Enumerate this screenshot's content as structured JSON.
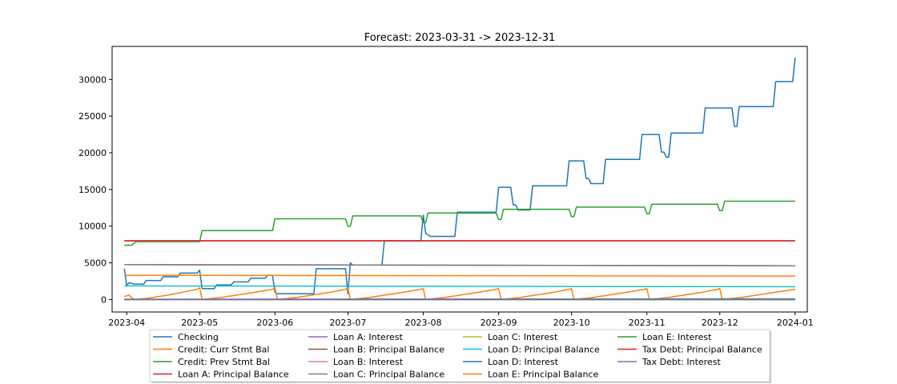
{
  "chart_data": {
    "type": "line",
    "title": "Forecast: 2023-03-31 -> 2023-12-31",
    "xlabel": "",
    "ylabel": "",
    "xlim": [
      "2023-03-26",
      "2024-01-06"
    ],
    "ylim": [
      -1700,
      34500
    ],
    "x_ticks": [
      "2023-04",
      "2023-05",
      "2023-06",
      "2023-07",
      "2023-08",
      "2023-09",
      "2023-10",
      "2023-11",
      "2023-12",
      "2024-01"
    ],
    "y_ticks": [
      0,
      5000,
      10000,
      15000,
      20000,
      25000,
      30000
    ],
    "grid": false,
    "legend_position": "bottom-center",
    "series": [
      {
        "name": "Checking",
        "color": "#1f77b4",
        "points": [
          [
            "2023-03-31",
            4200
          ],
          [
            "2023-04-01",
            1900
          ],
          [
            "2023-04-02",
            2300
          ],
          [
            "2023-04-04",
            2100
          ],
          [
            "2023-04-08",
            2100
          ],
          [
            "2023-04-09",
            2600
          ],
          [
            "2023-04-15",
            2600
          ],
          [
            "2023-04-16",
            3100
          ],
          [
            "2023-04-22",
            3100
          ],
          [
            "2023-04-23",
            3600
          ],
          [
            "2023-04-30",
            3600
          ],
          [
            "2023-05-01",
            4000
          ],
          [
            "2023-05-02",
            1500
          ],
          [
            "2023-05-07",
            1500
          ],
          [
            "2023-05-08",
            2000
          ],
          [
            "2023-05-14",
            2000
          ],
          [
            "2023-05-15",
            2400
          ],
          [
            "2023-05-21",
            2400
          ],
          [
            "2023-05-22",
            2900
          ],
          [
            "2023-05-28",
            2900
          ],
          [
            "2023-05-29",
            3300
          ],
          [
            "2023-05-31",
            3300
          ],
          [
            "2023-06-01",
            1000
          ],
          [
            "2023-06-02",
            800
          ],
          [
            "2023-06-17",
            800
          ],
          [
            "2023-06-18",
            4200
          ],
          [
            "2023-06-30",
            4200
          ],
          [
            "2023-07-01",
            800
          ],
          [
            "2023-07-02",
            5000
          ],
          [
            "2023-07-03",
            4700
          ],
          [
            "2023-07-15",
            4700
          ],
          [
            "2023-07-16",
            8000
          ],
          [
            "2023-07-31",
            8000
          ],
          [
            "2023-08-01",
            11500
          ],
          [
            "2023-08-02",
            9000
          ],
          [
            "2023-08-04",
            8600
          ],
          [
            "2023-08-14",
            8600
          ],
          [
            "2023-08-15",
            11900
          ],
          [
            "2023-08-31",
            11900
          ],
          [
            "2023-09-01",
            15300
          ],
          [
            "2023-09-06",
            15300
          ],
          [
            "2023-09-07",
            12900
          ],
          [
            "2023-09-08",
            12900
          ],
          [
            "2023-09-09",
            12200
          ],
          [
            "2023-09-14",
            12200
          ],
          [
            "2023-09-15",
            15500
          ],
          [
            "2023-09-29",
            15500
          ],
          [
            "2023-09-30",
            18900
          ],
          [
            "2023-10-06",
            18900
          ],
          [
            "2023-10-07",
            16500
          ],
          [
            "2023-10-08",
            16500
          ],
          [
            "2023-10-09",
            15800
          ],
          [
            "2023-10-14",
            15800
          ],
          [
            "2023-10-15",
            19100
          ],
          [
            "2023-10-29",
            19100
          ],
          [
            "2023-10-30",
            22500
          ],
          [
            "2023-11-06",
            22500
          ],
          [
            "2023-11-07",
            20100
          ],
          [
            "2023-11-08",
            20100
          ],
          [
            "2023-11-09",
            19400
          ],
          [
            "2023-11-10",
            19400
          ],
          [
            "2023-11-11",
            22700
          ],
          [
            "2023-11-24",
            22700
          ],
          [
            "2023-11-25",
            26100
          ],
          [
            "2023-12-06",
            26100
          ],
          [
            "2023-12-07",
            23600
          ],
          [
            "2023-12-08",
            23600
          ],
          [
            "2023-12-09",
            26300
          ],
          [
            "2023-12-23",
            26300
          ],
          [
            "2023-12-24",
            29700
          ],
          [
            "2023-12-31",
            29700
          ],
          [
            "2024-01-01",
            33000
          ]
        ]
      },
      {
        "name": "Credit: Curr Stmt Bal",
        "color": "#ff7f0e",
        "points": [
          [
            "2023-03-31",
            400
          ],
          [
            "2023-04-02",
            600
          ],
          [
            "2023-04-04",
            0
          ],
          [
            "2023-04-10",
            200
          ],
          [
            "2023-04-18",
            600
          ],
          [
            "2023-04-24",
            1000
          ],
          [
            "2023-04-30",
            1400
          ],
          [
            "2023-05-01",
            1600
          ],
          [
            "2023-05-02",
            0
          ],
          [
            "2023-05-10",
            300
          ],
          [
            "2023-05-18",
            700
          ],
          [
            "2023-05-24",
            1000
          ],
          [
            "2023-05-31",
            1400
          ],
          [
            "2023-06-01",
            1600
          ],
          [
            "2023-06-02",
            0
          ],
          [
            "2023-06-10",
            300
          ],
          [
            "2023-06-18",
            700
          ],
          [
            "2023-06-24",
            1000
          ],
          [
            "2023-06-30",
            1400
          ],
          [
            "2023-07-01",
            1600
          ],
          [
            "2023-07-02",
            0
          ],
          [
            "2023-07-10",
            300
          ],
          [
            "2023-07-18",
            700
          ],
          [
            "2023-07-24",
            1000
          ],
          [
            "2023-07-31",
            1400
          ],
          [
            "2023-08-01",
            1500
          ],
          [
            "2023-08-02",
            0
          ],
          [
            "2023-08-10",
            300
          ],
          [
            "2023-08-18",
            700
          ],
          [
            "2023-08-24",
            1000
          ],
          [
            "2023-08-31",
            1400
          ],
          [
            "2023-09-01",
            1500
          ],
          [
            "2023-09-02",
            0
          ],
          [
            "2023-09-10",
            300
          ],
          [
            "2023-09-18",
            700
          ],
          [
            "2023-09-24",
            1000
          ],
          [
            "2023-09-30",
            1400
          ],
          [
            "2023-10-01",
            1500
          ],
          [
            "2023-10-02",
            0
          ],
          [
            "2023-10-10",
            300
          ],
          [
            "2023-10-18",
            700
          ],
          [
            "2023-10-24",
            1000
          ],
          [
            "2023-10-31",
            1400
          ],
          [
            "2023-11-01",
            1500
          ],
          [
            "2023-11-02",
            0
          ],
          [
            "2023-11-10",
            300
          ],
          [
            "2023-11-18",
            700
          ],
          [
            "2023-11-24",
            1000
          ],
          [
            "2023-11-30",
            1400
          ],
          [
            "2023-12-01",
            1500
          ],
          [
            "2023-12-02",
            0
          ],
          [
            "2023-12-10",
            300
          ],
          [
            "2023-12-18",
            700
          ],
          [
            "2023-12-24",
            1000
          ],
          [
            "2024-01-01",
            1400
          ]
        ]
      },
      {
        "name": "Credit: Prev Stmt Bal",
        "color": "#2ca02c",
        "points": [
          [
            "2023-03-31",
            7400
          ],
          [
            "2023-04-03",
            7400
          ],
          [
            "2023-04-05",
            7900
          ],
          [
            "2023-05-01",
            7900
          ],
          [
            "2023-05-02",
            9400
          ],
          [
            "2023-05-31",
            9400
          ],
          [
            "2023-06-01",
            11000
          ],
          [
            "2023-06-30",
            11000
          ],
          [
            "2023-07-01",
            10000
          ],
          [
            "2023-07-02",
            10000
          ],
          [
            "2023-07-03",
            11400
          ],
          [
            "2023-07-31",
            11400
          ],
          [
            "2023-08-01",
            10500
          ],
          [
            "2023-08-02",
            10500
          ],
          [
            "2023-08-03",
            11800
          ],
          [
            "2023-08-31",
            11800
          ],
          [
            "2023-09-01",
            10900
          ],
          [
            "2023-09-02",
            10900
          ],
          [
            "2023-09-03",
            12300
          ],
          [
            "2023-09-30",
            12300
          ],
          [
            "2023-10-01",
            11300
          ],
          [
            "2023-10-02",
            11300
          ],
          [
            "2023-10-03",
            12600
          ],
          [
            "2023-10-31",
            12600
          ],
          [
            "2023-11-01",
            11700
          ],
          [
            "2023-11-02",
            11700
          ],
          [
            "2023-11-03",
            13000
          ],
          [
            "2023-11-30",
            13000
          ],
          [
            "2023-12-01",
            12100
          ],
          [
            "2023-12-02",
            12100
          ],
          [
            "2023-12-03",
            13400
          ],
          [
            "2024-01-01",
            13400
          ]
        ]
      },
      {
        "name": "Loan A: Principal Balance",
        "color": "#d62728",
        "points": [
          [
            "2023-03-31",
            8000
          ],
          [
            "2024-01-01",
            8000
          ]
        ]
      },
      {
        "name": "Loan A: Interest",
        "color": "#9467bd",
        "points": [
          [
            "2023-03-31",
            0
          ],
          [
            "2024-01-01",
            0
          ]
        ]
      },
      {
        "name": "Loan B: Principal Balance",
        "color": "#8c564b",
        "points": [
          [
            "2023-03-31",
            4750
          ],
          [
            "2024-01-01",
            4600
          ]
        ]
      },
      {
        "name": "Loan B: Interest",
        "color": "#e377c2",
        "points": [
          [
            "2023-03-31",
            0
          ],
          [
            "2024-01-01",
            0
          ]
        ]
      },
      {
        "name": "Loan C: Principal Balance",
        "color": "#7f7f7f",
        "points": [
          [
            "2023-03-31",
            4750
          ],
          [
            "2024-01-01",
            4600
          ]
        ]
      },
      {
        "name": "Loan C: Interest",
        "color": "#bcbd22",
        "points": [
          [
            "2023-03-31",
            0
          ],
          [
            "2024-01-01",
            0
          ]
        ]
      },
      {
        "name": "Loan D: Principal Balance",
        "color": "#17becf",
        "points": [
          [
            "2023-03-31",
            1850
          ],
          [
            "2024-01-01",
            1750
          ]
        ]
      },
      {
        "name": "Loan D: Interest",
        "color": "#1f77b4",
        "points": [
          [
            "2023-03-31",
            0
          ],
          [
            "2024-01-01",
            0
          ]
        ]
      },
      {
        "name": "Loan E: Principal Balance",
        "color": "#ff7f0e",
        "points": [
          [
            "2023-03-31",
            3300
          ],
          [
            "2024-01-01",
            3200
          ]
        ]
      },
      {
        "name": "Loan E: Interest",
        "color": "#2ca02c",
        "points": [
          [
            "2023-03-31",
            0
          ],
          [
            "2024-01-01",
            0
          ]
        ]
      },
      {
        "name": "Tax Debt: Principal Balance",
        "color": "#d62728",
        "points": [
          [
            "2023-03-31",
            8000
          ],
          [
            "2024-01-01",
            8000
          ]
        ]
      },
      {
        "name": "Tax Debt: Interest",
        "color": "#9467bd",
        "points": [
          [
            "2023-03-31",
            50
          ],
          [
            "2024-01-01",
            100
          ]
        ]
      }
    ]
  }
}
